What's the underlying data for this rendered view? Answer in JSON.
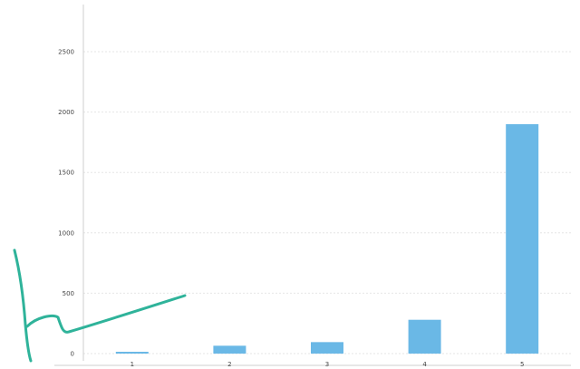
{
  "chart_data": {
    "type": "bar",
    "categories": [
      "1",
      "2",
      "3",
      "4",
      "5"
    ],
    "values": [
      15,
      65,
      95,
      280,
      1900
    ],
    "ylim": [
      0,
      2500
    ],
    "yticks": [
      "0",
      "500",
      "1000",
      "1500",
      "2000",
      "2500"
    ],
    "grid": true,
    "bar_color": "#6ab8e6",
    "annotation_color": "#2fb39a"
  }
}
